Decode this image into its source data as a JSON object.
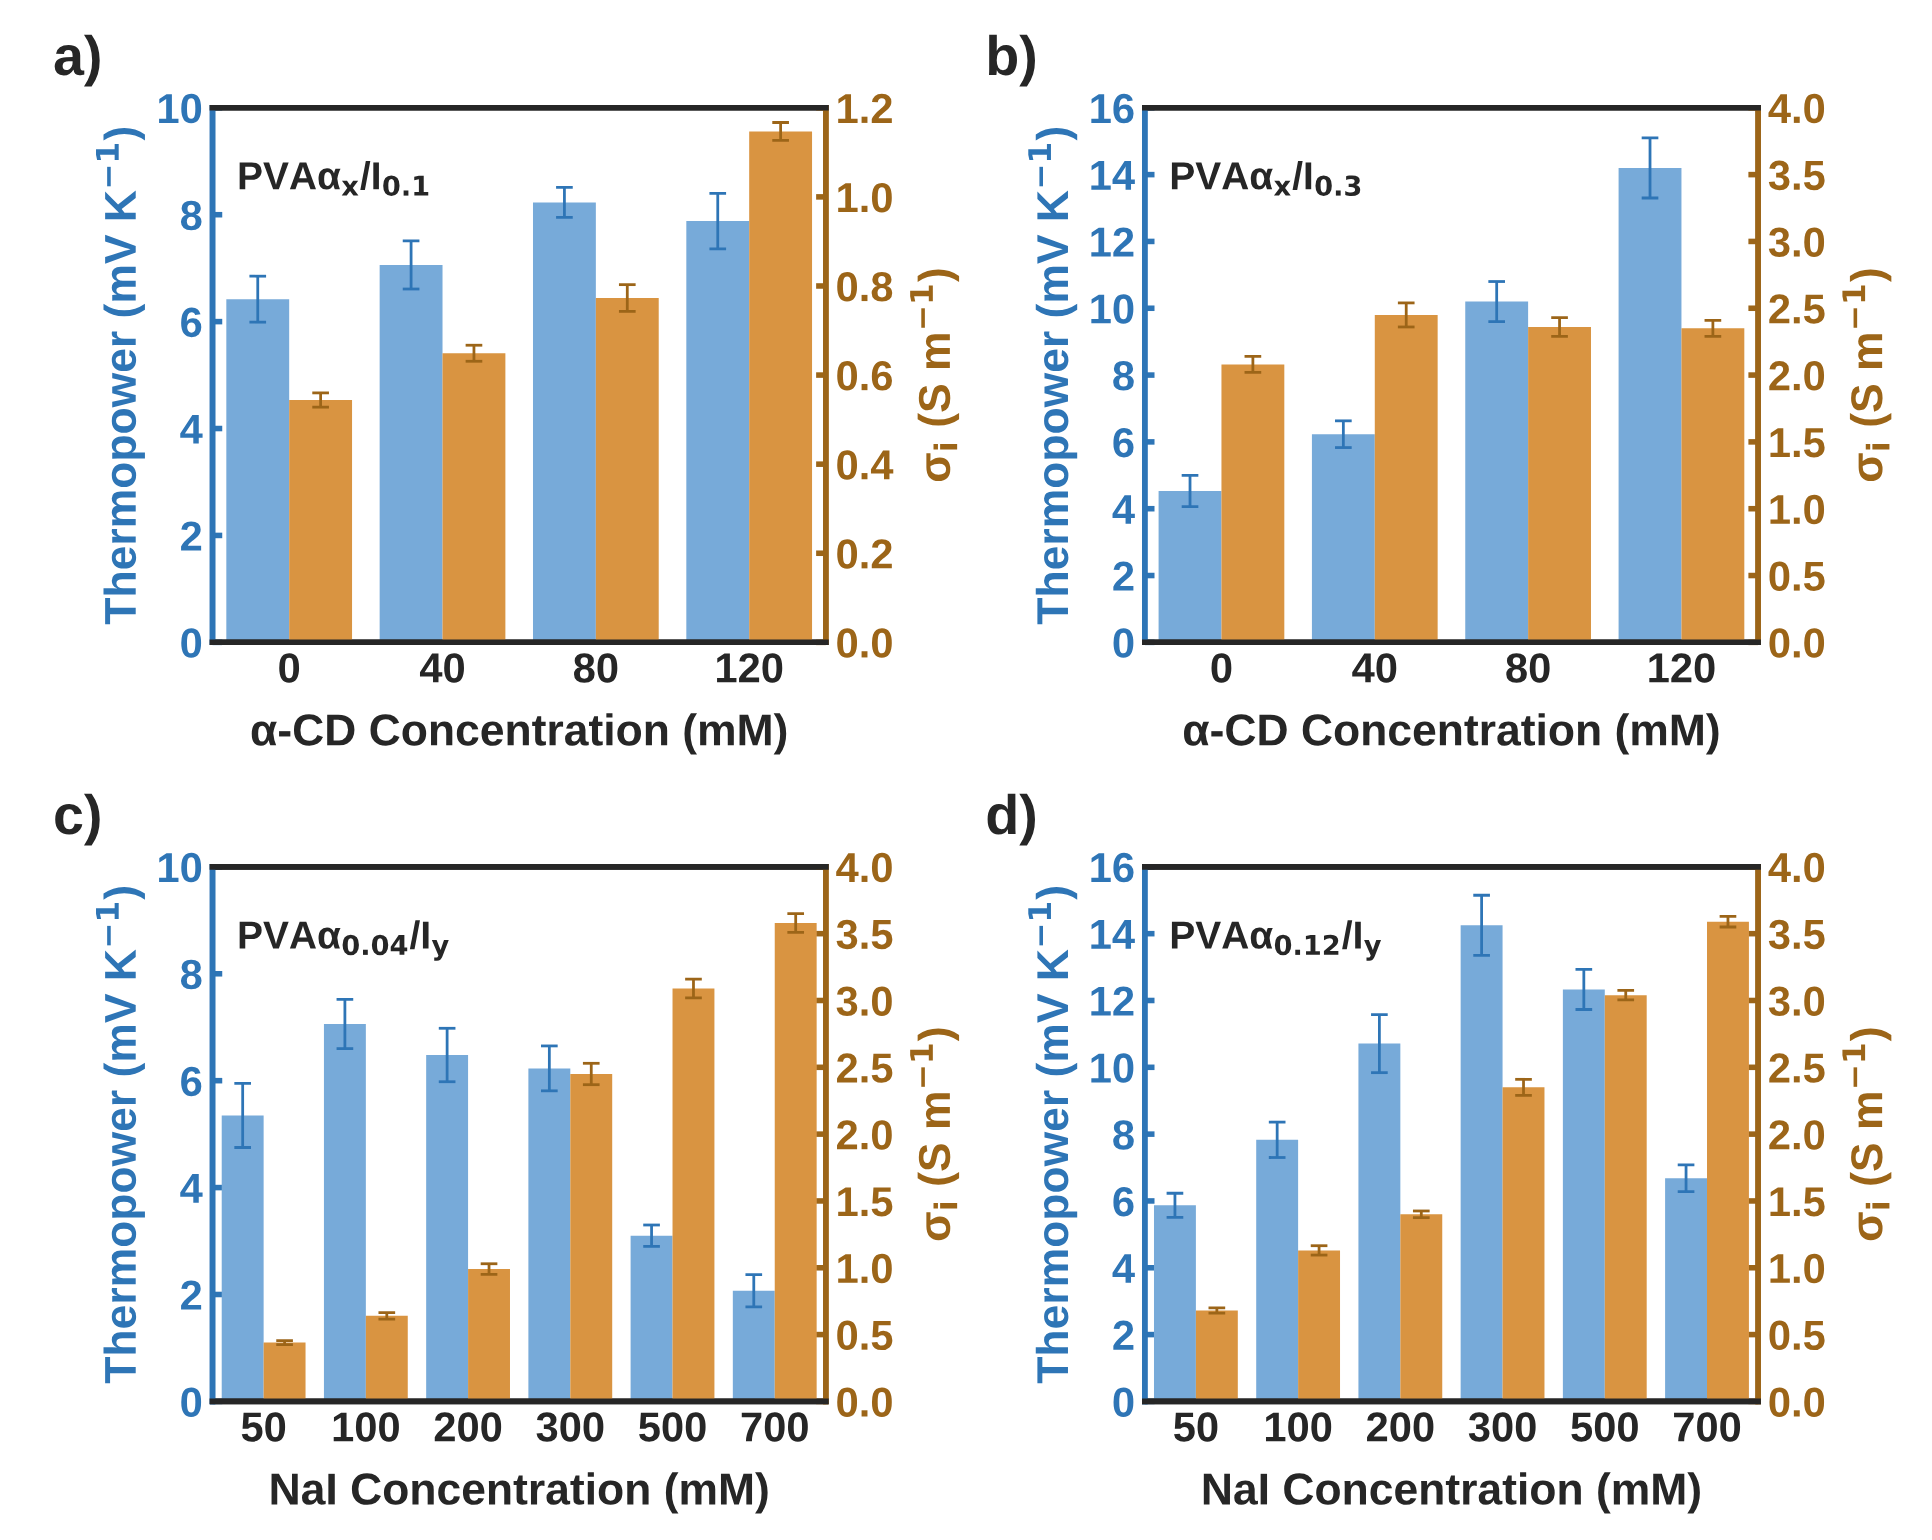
{
  "chart_data": [
    {
      "type": "bar",
      "title": "a)",
      "xlabel": "α-CD Concentration (mM)",
      "ylabel": "Thermopower (mV K$^{−1}$)",
      "y2label": "σ$_{i}$ (S m$^{−1}$)",
      "annotations": [
        "PVAα$_{x}$/I$_{0.1}$"
      ],
      "categories": [
        "0",
        "40",
        "80",
        "120"
      ],
      "series": [
        {
          "color": "#77aad9",
          "values": [
            6.42,
            7.06,
            8.23,
            7.88
          ],
          "errors": [
            0.43,
            0.45,
            0.28,
            0.52
          ]
        },
        {
          "color": "#d99441",
          "axis": "y2",
          "values": [
            0.544,
            0.649,
            0.773,
            1.147
          ],
          "errors": [
            0.016,
            0.018,
            0.03,
            0.02
          ]
        }
      ],
      "ylim": [
        0,
        10
      ],
      "yticks": [
        0,
        2,
        4,
        6,
        8,
        10
      ],
      "y2lim": [
        0,
        1.2
      ],
      "y2ticks": [
        {
          "value": 0,
          "label": "0.0"
        },
        {
          "value": 0.2,
          "label": "0.2"
        },
        {
          "value": 0.4,
          "label": "0.4"
        },
        {
          "value": 0.6,
          "label": "0.6"
        },
        {
          "value": 0.8,
          "label": "0.8"
        },
        {
          "value": 1.0,
          "label": "1.0"
        },
        {
          "value": 1.2,
          "label": "1.2"
        }
      ]
    },
    {
      "type": "bar",
      "title": "b)",
      "xlabel": "α-CD Concentration (mM)",
      "ylabel": "Thermopower (mV K$^{−1}$)",
      "y2label": "σ$_{i}$ (S m$^{−1}$)",
      "annotations": [
        "PVAα$_{x}$/I$_{0.3}$"
      ],
      "categories": [
        "0",
        "40",
        "80",
        "120"
      ],
      "series": [
        {
          "color": "#77aad9",
          "values": [
            4.53,
            6.23,
            10.2,
            14.2
          ],
          "errors": [
            0.47,
            0.4,
            0.6,
            0.9
          ]
        },
        {
          "color": "#d99441",
          "axis": "y2",
          "values": [
            2.08,
            2.45,
            2.36,
            2.35
          ],
          "errors": [
            0.06,
            0.09,
            0.07,
            0.06
          ]
        }
      ],
      "ylim": [
        0,
        16
      ],
      "yticks": [
        0,
        2,
        4,
        6,
        8,
        10,
        12,
        14,
        16
      ],
      "y2lim": [
        0,
        4
      ],
      "y2ticks": [
        {
          "value": 0,
          "label": "0.0"
        },
        {
          "value": 0.5,
          "label": "0.5"
        },
        {
          "value": 1,
          "label": "1.0"
        },
        {
          "value": 1.5,
          "label": "1.5"
        },
        {
          "value": 2,
          "label": "2.0"
        },
        {
          "value": 2.5,
          "label": "2.5"
        },
        {
          "value": 3,
          "label": "3.0"
        },
        {
          "value": 3.5,
          "label": "3.5"
        },
        {
          "value": 4,
          "label": "4.0"
        }
      ]
    },
    {
      "type": "bar",
      "title": "c)",
      "xlabel": "NaI Concentration (mM)",
      "ylabel": "Thermopower (mV K$^{−1}$)",
      "y2label": "σ$_{i}$ (S m$^{−1}$)",
      "annotations": [
        "PVAα$_{0.04}$/I$_{y}$"
      ],
      "categories": [
        "50",
        "100",
        "200",
        "300",
        "500",
        "700"
      ],
      "series": [
        {
          "color": "#77aad9",
          "values": [
            5.35,
            7.06,
            6.48,
            6.23,
            3.1,
            2.07
          ],
          "errors": [
            0.6,
            0.46,
            0.5,
            0.42,
            0.2,
            0.3
          ]
        },
        {
          "color": "#d99441",
          "axis": "y2",
          "values": [
            0.44,
            0.64,
            0.99,
            2.45,
            3.09,
            3.58
          ],
          "errors": [
            0.015,
            0.025,
            0.04,
            0.08,
            0.07,
            0.07
          ]
        }
      ],
      "ylim": [
        0,
        10
      ],
      "yticks": [
        0,
        2,
        4,
        6,
        8,
        10
      ],
      "y2lim": [
        0,
        4
      ],
      "y2ticks": [
        {
          "value": 0,
          "label": "0.0"
        },
        {
          "value": 0.5,
          "label": "0.5"
        },
        {
          "value": 1,
          "label": "1.0"
        },
        {
          "value": 1.5,
          "label": "1.5"
        },
        {
          "value": 2,
          "label": "2.0"
        },
        {
          "value": 2.5,
          "label": "2.5"
        },
        {
          "value": 3,
          "label": "3.0"
        },
        {
          "value": 3.5,
          "label": "3.5"
        },
        {
          "value": 4,
          "label": "4.0"
        }
      ]
    },
    {
      "type": "bar",
      "title": "d)",
      "xlabel": "NaI Concentration (mM)",
      "ylabel": "Thermopower (mV K$^{−1}$)",
      "y2label": "σ$_{i}$ (S m$^{−1}$)",
      "annotations": [
        "PVAα$_{0.12}$/I$_{y}$"
      ],
      "categories": [
        "50",
        "100",
        "200",
        "300",
        "500",
        "700"
      ],
      "series": [
        {
          "color": "#77aad9",
          "values": [
            5.87,
            7.83,
            10.71,
            14.25,
            12.33,
            6.68
          ],
          "errors": [
            0.36,
            0.53,
            0.87,
            0.9,
            0.6,
            0.4
          ]
        },
        {
          "color": "#d99441",
          "axis": "y2",
          "values": [
            0.68,
            1.13,
            1.4,
            2.35,
            3.04,
            3.59
          ],
          "errors": [
            0.02,
            0.035,
            0.025,
            0.06,
            0.035,
            0.04
          ]
        }
      ],
      "ylim": [
        0,
        16
      ],
      "yticks": [
        0,
        2,
        4,
        6,
        8,
        10,
        12,
        14,
        16
      ],
      "y2lim": [
        0,
        4
      ],
      "y2ticks": [
        {
          "value": 0,
          "label": "0.0"
        },
        {
          "value": 0.5,
          "label": "0.5"
        },
        {
          "value": 1,
          "label": "1.0"
        },
        {
          "value": 1.5,
          "label": "1.5"
        },
        {
          "value": 2,
          "label": "2.0"
        },
        {
          "value": 2.5,
          "label": "2.5"
        },
        {
          "value": 3,
          "label": "3.0"
        },
        {
          "value": 3.5,
          "label": "3.5"
        },
        {
          "value": 4,
          "label": "4.0"
        }
      ]
    }
  ]
}
